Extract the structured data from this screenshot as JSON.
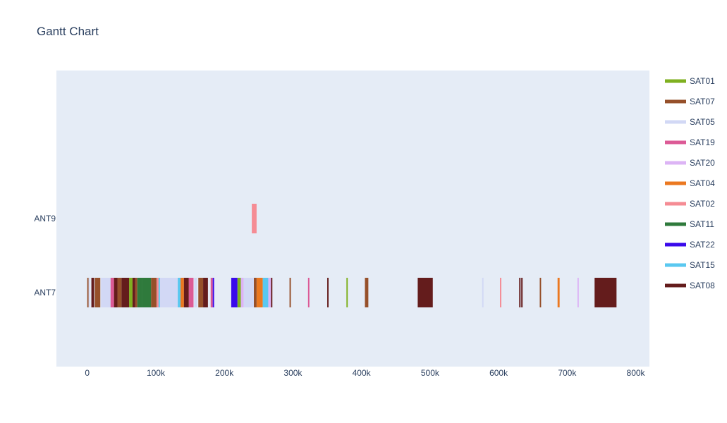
{
  "chart_data": {
    "type": "gantt",
    "title": "Gantt Chart",
    "xlabel": "",
    "ylabel": "",
    "xlim": [
      -45000,
      820000
    ],
    "x_ticks": [
      0,
      100000,
      200000,
      300000,
      400000,
      500000,
      600000,
      700000,
      800000
    ],
    "x_tick_labels": [
      "0",
      "100k",
      "200k",
      "300k",
      "400k",
      "500k",
      "600k",
      "700k",
      "800k"
    ],
    "categories": [
      "ANT7",
      "ANT9"
    ],
    "legend_position": "right",
    "grid": false,
    "series": [
      {
        "name": "SAT01",
        "color": "#7fb020",
        "tasks": [
          {
            "row": "ANT7",
            "start": 61000,
            "end": 66000
          },
          {
            "row": "ANT7",
            "start": 219000,
            "end": 224000
          },
          {
            "row": "ANT7",
            "start": 378000,
            "end": 380000
          }
        ]
      },
      {
        "name": "SAT07",
        "color": "#96502a",
        "tasks": [
          {
            "row": "ANT7",
            "start": 0,
            "end": 2000
          },
          {
            "row": "ANT7",
            "start": 11000,
            "end": 19000
          },
          {
            "row": "ANT7",
            "start": 44000,
            "end": 50000
          },
          {
            "row": "ANT7",
            "start": 70000,
            "end": 73000
          },
          {
            "row": "ANT7",
            "start": 93000,
            "end": 101000
          },
          {
            "row": "ANT7",
            "start": 162000,
            "end": 169000
          },
          {
            "row": "ANT7",
            "start": 243000,
            "end": 247000
          },
          {
            "row": "ANT7",
            "start": 295000,
            "end": 297000
          },
          {
            "row": "ANT7",
            "start": 405000,
            "end": 410000
          },
          {
            "row": "ANT7",
            "start": 660000,
            "end": 662000
          }
        ]
      },
      {
        "name": "SAT05",
        "color": "#d2d8f5",
        "tasks": [
          {
            "row": "ANT7",
            "start": 2000,
            "end": 3000
          },
          {
            "row": "ANT7",
            "start": 20000,
            "end": 34000
          },
          {
            "row": "ANT7",
            "start": 106000,
            "end": 132000
          },
          {
            "row": "ANT7",
            "start": 156000,
            "end": 160000
          },
          {
            "row": "ANT7",
            "start": 228000,
            "end": 243000
          },
          {
            "row": "ANT7",
            "start": 576000,
            "end": 578000
          }
        ]
      },
      {
        "name": "SAT19",
        "color": "#dc5a96",
        "tasks": [
          {
            "row": "ANT7",
            "start": 34000,
            "end": 39000
          },
          {
            "row": "ANT7",
            "start": 148000,
            "end": 155000
          },
          {
            "row": "ANT7",
            "start": 180000,
            "end": 183000
          },
          {
            "row": "ANT7",
            "start": 322000,
            "end": 324000
          }
        ]
      },
      {
        "name": "SAT20",
        "color": "#dcb4f5",
        "tasks": [
          {
            "row": "ANT7",
            "start": 224000,
            "end": 228000
          },
          {
            "row": "ANT7",
            "start": 264000,
            "end": 268000
          },
          {
            "row": "ANT7",
            "start": 715000,
            "end": 717000
          }
        ]
      },
      {
        "name": "SAT04",
        "color": "#eb7820",
        "tasks": [
          {
            "row": "ANT7",
            "start": 136000,
            "end": 141000
          },
          {
            "row": "ANT7",
            "start": 247000,
            "end": 256000
          },
          {
            "row": "ANT7",
            "start": 686000,
            "end": 689000
          }
        ]
      },
      {
        "name": "SAT02",
        "color": "#f58c94",
        "tasks": [
          {
            "row": "ANT9",
            "start": 240000,
            "end": 247000
          },
          {
            "row": "ANT7",
            "start": 101000,
            "end": 104000
          },
          {
            "row": "ANT7",
            "start": 602000,
            "end": 604000
          }
        ]
      },
      {
        "name": "SAT11",
        "color": "#2f7a3c",
        "tasks": [
          {
            "row": "ANT7",
            "start": 73000,
            "end": 80000
          },
          {
            "row": "ANT7",
            "start": 80000,
            "end": 93000
          }
        ]
      },
      {
        "name": "SAT22",
        "color": "#3a0aeb",
        "tasks": [
          {
            "row": "ANT7",
            "start": 183000,
            "end": 185000
          },
          {
            "row": "ANT7",
            "start": 210000,
            "end": 219000
          }
        ]
      },
      {
        "name": "SAT15",
        "color": "#5ac8f0",
        "tasks": [
          {
            "row": "ANT7",
            "start": 104000,
            "end": 106000
          },
          {
            "row": "ANT7",
            "start": 132000,
            "end": 136000
          },
          {
            "row": "ANT7",
            "start": 256000,
            "end": 264000
          }
        ]
      },
      {
        "name": "SAT08",
        "color": "#641c1c",
        "tasks": [
          {
            "row": "ANT7",
            "start": 6000,
            "end": 10000
          },
          {
            "row": "ANT7",
            "start": 39000,
            "end": 44000
          },
          {
            "row": "ANT7",
            "start": 50000,
            "end": 61000
          },
          {
            "row": "ANT7",
            "start": 66000,
            "end": 70000
          },
          {
            "row": "ANT7",
            "start": 141000,
            "end": 148000
          },
          {
            "row": "ANT7",
            "start": 169000,
            "end": 176000
          },
          {
            "row": "ANT7",
            "start": 268000,
            "end": 270000
          },
          {
            "row": "ANT7",
            "start": 350000,
            "end": 352000
          },
          {
            "row": "ANT7",
            "start": 482000,
            "end": 504000
          },
          {
            "row": "ANT7",
            "start": 630000,
            "end": 632000
          },
          {
            "row": "ANT7",
            "start": 633000,
            "end": 635000
          },
          {
            "row": "ANT7",
            "start": 740000,
            "end": 772000
          }
        ]
      }
    ]
  }
}
